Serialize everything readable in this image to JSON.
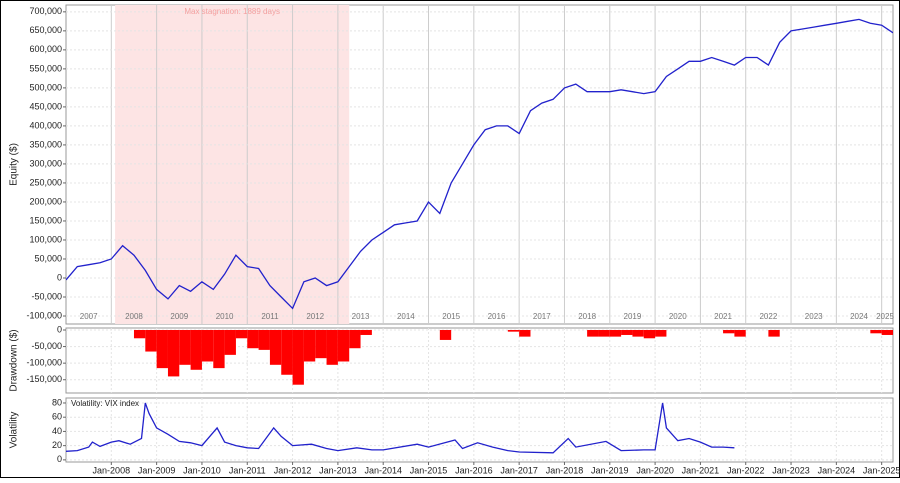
{
  "chart_data": [
    {
      "type": "line",
      "y_label": "Equity ($)",
      "color": "#2222cc",
      "x": [
        "2007-01",
        "2007-04",
        "2007-07",
        "2007-10",
        "2008-01",
        "2008-04",
        "2008-07",
        "2008-10",
        "2009-01",
        "2009-04",
        "2009-07",
        "2009-10",
        "2010-01",
        "2010-04",
        "2010-07",
        "2010-10",
        "2011-01",
        "2011-04",
        "2011-07",
        "2011-10",
        "2012-01",
        "2012-04",
        "2012-07",
        "2012-10",
        "2013-01",
        "2013-04",
        "2013-07",
        "2013-10",
        "2014-01",
        "2014-04",
        "2014-07",
        "2014-10",
        "2015-01",
        "2015-04",
        "2015-07",
        "2015-10",
        "2016-01",
        "2016-04",
        "2016-07",
        "2016-10",
        "2017-01",
        "2017-04",
        "2017-07",
        "2017-10",
        "2018-01",
        "2018-04",
        "2018-07",
        "2018-10",
        "2019-01",
        "2019-04",
        "2019-07",
        "2019-10",
        "2020-01",
        "2020-04",
        "2020-07",
        "2020-10",
        "2021-01",
        "2021-04",
        "2021-07",
        "2021-10",
        "2022-01",
        "2022-04",
        "2022-07",
        "2022-10",
        "2023-01",
        "2023-04",
        "2023-07",
        "2023-10",
        "2024-01",
        "2024-04",
        "2024-07",
        "2024-10",
        "2025-01",
        "2025-04"
      ],
      "values": [
        -5000,
        30000,
        35000,
        40000,
        50000,
        85000,
        60000,
        20000,
        -30000,
        -55000,
        -20000,
        -35000,
        -10000,
        -30000,
        10000,
        60000,
        30000,
        25000,
        -20000,
        -50000,
        -80000,
        -10000,
        0,
        -20000,
        -10000,
        30000,
        70000,
        100000,
        120000,
        140000,
        145000,
        150000,
        200000,
        170000,
        250000,
        300000,
        350000,
        390000,
        400000,
        400000,
        380000,
        440000,
        460000,
        470000,
        500000,
        510000,
        490000,
        490000,
        490000,
        495000,
        490000,
        485000,
        490000,
        530000,
        550000,
        570000,
        570000,
        580000,
        570000,
        560000,
        580000,
        580000,
        560000,
        620000,
        650000,
        655000,
        660000,
        665000,
        670000,
        675000,
        680000,
        670000,
        665000,
        645000
      ],
      "ylim": [
        -121000,
        718000
      ],
      "yticks": [
        {
          "value": -100000,
          "label": "-100,000"
        },
        {
          "value": -50000,
          "label": "-50,000"
        },
        0,
        {
          "value": 50000,
          "label": "50,000"
        },
        {
          "value": 100000,
          "label": "100,000"
        },
        {
          "value": 150000,
          "label": "150,000"
        },
        {
          "value": 200000,
          "label": "200,000"
        },
        {
          "value": 250000,
          "label": "250,000"
        },
        {
          "value": 300000,
          "label": "300,000"
        },
        {
          "value": 350000,
          "label": "350,000"
        },
        {
          "value": 400000,
          "label": "400,000"
        },
        {
          "value": 450000,
          "label": "450,000"
        },
        {
          "value": 500000,
          "label": "500,000"
        },
        {
          "value": 550000,
          "label": "550,000"
        },
        {
          "value": 600000,
          "label": "600,000"
        },
        {
          "value": 650000,
          "label": "650,000"
        },
        {
          "value": 700000,
          "label": "700,000"
        }
      ],
      "year_labels": [
        {
          "value": "2007-07",
          "label": "2007"
        },
        {
          "value": "2008-07",
          "label": "2008"
        },
        {
          "value": "2009-07",
          "label": "2009"
        },
        {
          "value": "2010-07",
          "label": "2010"
        },
        {
          "value": "2011-07",
          "label": "2011"
        },
        {
          "value": "2012-07",
          "label": "2012"
        },
        {
          "value": "2013-07",
          "label": "2013"
        },
        {
          "value": "2014-07",
          "label": "2014"
        },
        {
          "value": "2015-07",
          "label": "2015"
        },
        {
          "value": "2016-07",
          "label": "2016"
        },
        {
          "value": "2017-07",
          "label": "2017"
        },
        {
          "value": "2018-07",
          "label": "2018"
        },
        {
          "value": "2019-07",
          "label": "2019"
        },
        {
          "value": "2020-07",
          "label": "2020"
        },
        {
          "value": "2021-07",
          "label": "2021"
        },
        {
          "value": "2022-07",
          "label": "2022"
        },
        {
          "value": "2023-07",
          "label": "2023"
        },
        {
          "value": "2024-07",
          "label": "2024"
        },
        {
          "value": "2025-07",
          "label": "2025"
        }
      ],
      "stagnation": {
        "label": "Max stagnation: 1889 days",
        "start": "2008-02",
        "end": "2013-04",
        "color": "#fde4e4"
      }
    },
    {
      "type": "bar",
      "y_label": "Drawdown ($)",
      "color": "#ff0000",
      "values": [
        0,
        0,
        0,
        0,
        0,
        0,
        -25000,
        -65000,
        -115000,
        -140000,
        -105000,
        -120000,
        -95000,
        -115000,
        -75000,
        -25000,
        -55000,
        -60000,
        -105000,
        -135000,
        -165000,
        -95000,
        -85000,
        -105000,
        -95000,
        -55000,
        -15000,
        0,
        0,
        0,
        0,
        0,
        0,
        -30000,
        0,
        0,
        0,
        0,
        0,
        -5000,
        -20000,
        0,
        0,
        0,
        0,
        0,
        -20000,
        -20000,
        -20000,
        -15000,
        -20000,
        -25000,
        -20000,
        0,
        0,
        0,
        0,
        0,
        -10000,
        -20000,
        0,
        0,
        -20000,
        0,
        0,
        0,
        0,
        0,
        0,
        0,
        0,
        -10000,
        -15000,
        -35000
      ],
      "ylim": [
        -190000,
        6000
      ],
      "yticks": [
        {
          "value": -150000,
          "label": "-150,000"
        },
        {
          "value": -100000,
          "label": "-100,000"
        },
        {
          "value": -50000,
          "label": "-50,000"
        },
        0
      ]
    },
    {
      "type": "line",
      "title": "Volatility: VIX index",
      "y_label": "Volatility",
      "color": "#2222cc",
      "x": [
        "2007-01",
        "2007-04",
        "2007-07",
        "2007-08",
        "2007-10",
        "2008-01",
        "2008-03",
        "2008-06",
        "2008-09",
        "2008-10",
        "2008-11",
        "2009-01",
        "2009-04",
        "2009-07",
        "2009-10",
        "2010-01",
        "2010-05",
        "2010-07",
        "2010-10",
        "2011-01",
        "2011-04",
        "2011-08",
        "2011-10",
        "2012-01",
        "2012-06",
        "2012-10",
        "2013-01",
        "2013-06",
        "2013-10",
        "2014-01",
        "2014-10",
        "2015-01",
        "2015-08",
        "2015-10",
        "2016-02",
        "2016-06",
        "2016-10",
        "2017-01",
        "2017-10",
        "2018-02",
        "2018-04",
        "2018-12",
        "2019-04",
        "2019-10",
        "2020-01",
        "2020-03",
        "2020-04",
        "2020-07",
        "2020-10",
        "2021-01",
        "2021-04",
        "2021-07",
        "2021-10"
      ],
      "values": [
        12,
        13,
        18,
        25,
        19,
        25,
        27,
        22,
        30,
        80,
        65,
        45,
        36,
        26,
        24,
        20,
        45,
        25,
        20,
        17,
        16,
        45,
        33,
        20,
        22,
        16,
        13,
        17,
        14,
        14,
        22,
        18,
        28,
        16,
        24,
        18,
        13,
        11,
        10,
        30,
        18,
        26,
        13,
        14,
        14,
        80,
        45,
        27,
        30,
        25,
        18,
        18,
        17
      ],
      "ylim": [
        -3,
        87
      ],
      "yticks": [
        0,
        20,
        40,
        60,
        80
      ],
      "xlim": [
        "2007-01",
        "2025-04"
      ],
      "xticks": [
        {
          "value": "2008-01",
          "label": "Jan-2008"
        },
        {
          "value": "2009-01",
          "label": "Jan-2009"
        },
        {
          "value": "2010-01",
          "label": "Jan-2010"
        },
        {
          "value": "2011-01",
          "label": "Jan-2011"
        },
        {
          "value": "2012-01",
          "label": "Jan-2012"
        },
        {
          "value": "2013-01",
          "label": "Jan-2013"
        },
        {
          "value": "2014-01",
          "label": "Jan-2014"
        },
        {
          "value": "2015-01",
          "label": "Jan-2015"
        },
        {
          "value": "2016-01",
          "label": "Jan-2016"
        },
        {
          "value": "2017-01",
          "label": "Jan-2017"
        },
        {
          "value": "2018-01",
          "label": "Jan-2018"
        },
        {
          "value": "2019-01",
          "label": "Jan-2019"
        },
        {
          "value": "2020-01",
          "label": "Jan-2020"
        },
        {
          "value": "2021-01",
          "label": "Jan-2021"
        },
        {
          "value": "2022-01",
          "label": "Jan-2022"
        },
        {
          "value": "2023-01",
          "label": "Jan-2023"
        },
        {
          "value": "2024-01",
          "label": "Jan-2024"
        },
        {
          "value": "2025-01",
          "label": "Jan-2025"
        }
      ]
    }
  ]
}
